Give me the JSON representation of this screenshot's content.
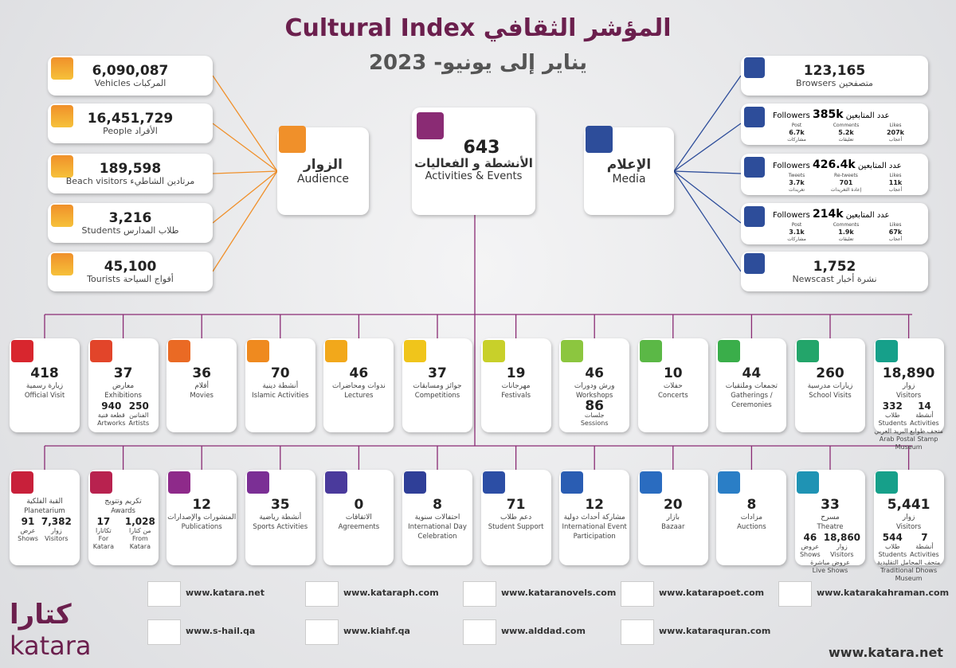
{
  "header": {
    "title_en": "Cultural Index",
    "title_ar": "المؤشر الثقافي",
    "subtitle": "يناير إلى يونيو- 2023"
  },
  "audience": {
    "title_ar": "الزوار",
    "title_en": "Audience",
    "color": "#f0902a",
    "items": [
      {
        "value": "6,090,087",
        "label_en": "Vehicles",
        "label_ar": "المركبات"
      },
      {
        "value": "16,451,729",
        "label_en": "People",
        "label_ar": "الأفراد"
      },
      {
        "value": "189,598",
        "label_en": "Beach visitors",
        "label_ar": "مرتادين الشاطيء"
      },
      {
        "value": "3,216",
        "label_en": "Students",
        "label_ar": "طلاب المدارس"
      },
      {
        "value": "45,100",
        "label_en": "Tourists",
        "label_ar": "أفواج السياحة"
      }
    ]
  },
  "activities": {
    "value": "643",
    "title_ar": "الأنشطة و الفعاليات",
    "title_en": "Activities & Events",
    "color": "#8a2b74"
  },
  "media": {
    "title_ar": "الإعلام",
    "title_en": "Media",
    "color": "#2d4d9a",
    "browsers": {
      "value": "123,165",
      "label_en": "Browsers",
      "label_ar": "متصفحين"
    },
    "social": [
      {
        "label_en": "Followers",
        "value": "385k",
        "label_ar": "عدد المتابعين",
        "stats": [
          {
            "label_en": "Post",
            "value": "6.7k",
            "label_ar": "مشاركات"
          },
          {
            "label_en": "Comments",
            "value": "5.2k",
            "label_ar": "تعليقات"
          },
          {
            "label_en": "Likes",
            "value": "207k",
            "label_ar": "أعجاب"
          }
        ]
      },
      {
        "label_en": "Followers",
        "value": "426.4k",
        "label_ar": "عدد المتابعين",
        "stats": [
          {
            "label_en": "Tweets",
            "value": "3.7k",
            "label_ar": "تغريدات"
          },
          {
            "label_en": "Re-tweets",
            "value": "701",
            "label_ar": "إعادة التغريدات"
          },
          {
            "label_en": "Likes",
            "value": "11k",
            "label_ar": "أعجاب"
          }
        ]
      },
      {
        "label_en": "Followers",
        "value": "214k",
        "label_ar": "عدد المتابعين",
        "stats": [
          {
            "label_en": "Post",
            "value": "3.1k",
            "label_ar": "مشاركات"
          },
          {
            "label_en": "Comments",
            "value": "1.9k",
            "label_ar": "تعليقات"
          },
          {
            "label_en": "Likes",
            "value": "67k",
            "label_ar": "أعجاب"
          }
        ]
      }
    ],
    "newscast": {
      "value": "1,752",
      "label_en": "Newscast",
      "label_ar": "نشرة أخبار"
    }
  },
  "row1": [
    {
      "color": "#d8262e",
      "value": "418",
      "label_ar": "زيارة رسمية",
      "label_en": "Official Visit"
    },
    {
      "color": "#e2452a",
      "value": "37",
      "label_ar": "معارض",
      "label_en": "Exhibitions",
      "stats": [
        {
          "value": "940",
          "label_ar": "قطعة فنية",
          "label_en": "Artworks"
        },
        {
          "value": "250",
          "label_ar": "الفنانين",
          "label_en": "Artists"
        }
      ]
    },
    {
      "color": "#ea6a24",
      "value": "36",
      "label_ar": "أفلام",
      "label_en": "Movies"
    },
    {
      "color": "#ef8a1f",
      "value": "70",
      "label_ar": "أنشطة دينية",
      "label_en": "Islamic Activities"
    },
    {
      "color": "#f2a81b",
      "value": "46",
      "label_ar": "ندوات ومحاضرات",
      "label_en": "Lectures"
    },
    {
      "color": "#f0c51b",
      "value": "37",
      "label_ar": "جوائز ومسابقات",
      "label_en": "Competitions"
    },
    {
      "color": "#c8d02a",
      "value": "19",
      "label_ar": "مهرجانات",
      "label_en": "Festivals"
    },
    {
      "color": "#8cc63f",
      "value": "46",
      "label_ar": "ورش ودورات",
      "label_en": "Workshops",
      "stats": [
        {
          "value": "86",
          "label_ar": "جلسات",
          "label_en": "Sessions"
        }
      ]
    },
    {
      "color": "#5bb846",
      "value": "10",
      "label_ar": "حفلات",
      "label_en": "Concerts"
    },
    {
      "color": "#3aae4a",
      "value": "44",
      "label_ar": "تجمعات وملتقيات",
      "label_en": "Gatherings / Ceremonies"
    },
    {
      "color": "#23a56a",
      "value": "260",
      "label_ar": "زيارات مدرسية",
      "label_en": "School Visits"
    },
    {
      "color": "#16a08a",
      "value": "18,890",
      "label_ar": "زوار",
      "label_en": "Visitors",
      "stats": [
        {
          "value": "332",
          "label_ar": "طلاب",
          "label_en": "Students"
        },
        {
          "value": "14",
          "label_ar": "أنشطة",
          "label_en": "Activities"
        }
      ],
      "note_ar": "متحف طوابع البريد العربي",
      "note_en": "Arab Postal Stamp Museum"
    }
  ],
  "row2": [
    {
      "color": "#c8203a",
      "label_ar": "القبة الفلكية",
      "label_en": "Planetarium",
      "stats": [
        {
          "value": "91",
          "label_ar": "عرض",
          "label_en": "Shows"
        },
        {
          "value": "7,382",
          "label_ar": "زوار",
          "label_en": "Visitors"
        }
      ]
    },
    {
      "color": "#b8224f",
      "label_ar": "تكريم وتتويج",
      "label_en": "Awards",
      "stats": [
        {
          "value": "17",
          "label_ar": "تكاتارا",
          "label_en": "For Katara"
        },
        {
          "value": "1,028",
          "label_ar": "من كتارا",
          "label_en": "From Katara"
        }
      ]
    },
    {
      "color": "#8e2a8a",
      "value": "12",
      "label_ar": "المنشورات والإصدارات",
      "label_en": "Publications"
    },
    {
      "color": "#7b2f95",
      "value": "35",
      "label_ar": "أنشطة رياضية",
      "label_en": "Sports Activities"
    },
    {
      "color": "#4a3a9c",
      "value": "0",
      "label_ar": "الاتفاقات",
      "label_en": "Agreements"
    },
    {
      "color": "#2f3f98",
      "value": "8",
      "label_ar": "احتفالات سنوية",
      "label_en": "International Day Celebration"
    },
    {
      "color": "#2c4ea5",
      "value": "71",
      "label_ar": "دعم طلاب",
      "label_en": "Student Support"
    },
    {
      "color": "#2a5db3",
      "value": "12",
      "label_ar": "مشاركة أحداث دولية",
      "label_en": "International Event Participation"
    },
    {
      "color": "#2a6cc0",
      "value": "20",
      "label_ar": "بازار",
      "label_en": "Bazaar"
    },
    {
      "color": "#2a7ec6",
      "value": "8",
      "label_ar": "مزادات",
      "label_en": "Auctions"
    },
    {
      "color": "#1f93b4",
      "value": "33",
      "label_ar": "مسرح",
      "label_en": "Theatre",
      "stats": [
        {
          "value": "46",
          "label_ar": "عروض",
          "label_en": "Shows"
        },
        {
          "value": "18,860",
          "label_ar": "زوار",
          "label_en": "Visitors"
        }
      ],
      "note_ar": "عروض مباشرة",
      "note_en": "Live Shows"
    },
    {
      "color": "#16a08a",
      "value": "5,441",
      "label_ar": "زوار",
      "label_en": "Visitors",
      "stats": [
        {
          "value": "544",
          "label_ar": "طلاب",
          "label_en": "Students"
        },
        {
          "value": "7",
          "label_ar": "أنشطة",
          "label_en": "Activities"
        }
      ],
      "note_ar": "متحف المحامل التقليدية",
      "note_en": "Traditional Dhows Museum"
    }
  ],
  "links": [
    "www.katara.net",
    "www.kataraph.com",
    "www.kataranovels.com",
    "www.katarapoet.com",
    "www.katarakahraman.com",
    "www.s-hail.qa",
    "www.kiahf.qa",
    "www.alddad.com",
    "www.kataraquran.com"
  ],
  "footer": {
    "logo_ar": "كتارا",
    "logo_en": "katara",
    "url": "www.katara.net"
  }
}
